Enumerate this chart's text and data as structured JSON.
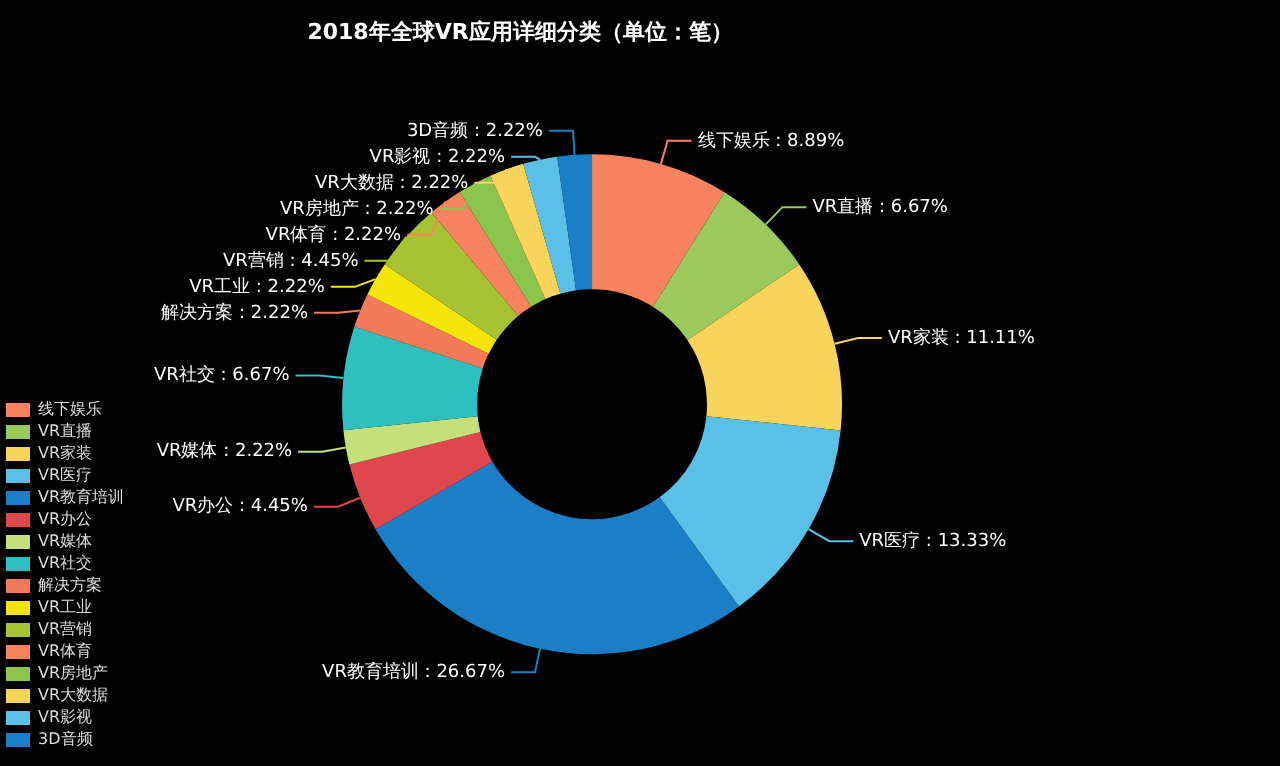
{
  "chart_data": {
    "type": "donut",
    "title": "2018年全球VR应用详细分类（单位：笔）",
    "categories": [
      "线下娱乐",
      "VR直播",
      "VR家装",
      "VR医疗",
      "VR教育培训",
      "VR办公",
      "VR媒体",
      "VR社交",
      "解决方案",
      "VR工业",
      "VR营销",
      "VR体育",
      "VR房地产",
      "VR大数据",
      "VR影视",
      "3D音频"
    ],
    "values": [
      8.89,
      6.67,
      11.11,
      13.33,
      26.67,
      4.45,
      2.22,
      6.67,
      2.22,
      2.22,
      4.45,
      2.22,
      2.22,
      2.22,
      2.22,
      2.22
    ],
    "value_labels": [
      ": 8.89%",
      ": 6.67%",
      ": 11.11%",
      ": 13.33%",
      ": 26.67%",
      ": 4.45%",
      ": 2.22%",
      ": 6.67%",
      ": 2.22%",
      ": 2.22%",
      ": 4.45%",
      ": 2.22%",
      ": 2.22%",
      ": 2.22%",
      ": 2.22%",
      ": 2.22%"
    ],
    "colors": [
      "#f7845e",
      "#9bc95b",
      "#f9d45b",
      "#5bc0e8",
      "#1a7fc7",
      "#e0474c",
      "#c5e07a",
      "#2ebfc0",
      "#f47a5a",
      "#f5e50a",
      "#a7c232",
      "#f7845e",
      "#8cc54b",
      "#f9d45b",
      "#5bc0e8",
      "#1a7fc7"
    ],
    "legend": "bottom left"
  }
}
